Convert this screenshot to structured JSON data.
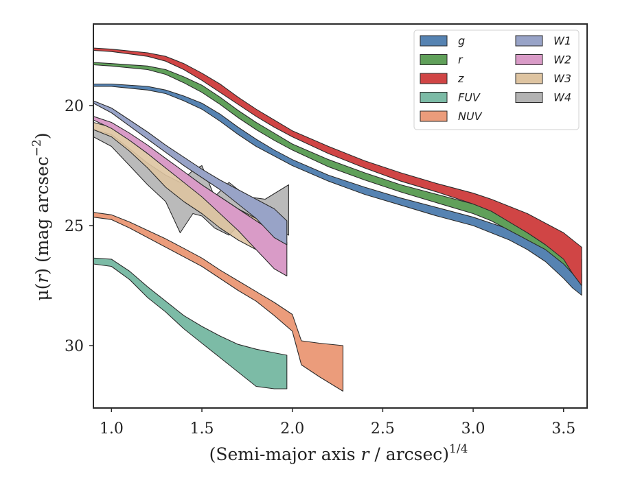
{
  "chart_data": {
    "type": "area",
    "xlabel": "(Semi-major axis r / arcsec)",
    "xlabel_parts": {
      "prefix": "(Semi-major axis ",
      "var": "r",
      "suffix": " / arcsec)",
      "exponent": "1/4"
    },
    "ylabel": "μ(r) (mag arcsec⁻²)",
    "ylabel_parts": {
      "prefix": "μ(",
      "var": "r",
      "suffix": ") (mag arcsec",
      "exponent": "−2",
      "close": ")"
    },
    "xlim": [
      0.9,
      3.63
    ],
    "ylim": [
      32.6,
      16.6
    ],
    "y_inverted": true,
    "xticks": [
      1.0,
      1.5,
      2.0,
      2.5,
      3.0,
      3.5
    ],
    "xtick_labels": [
      "1.0",
      "1.5",
      "2.0",
      "2.5",
      "3.0",
      "3.5"
    ],
    "yticks": [
      20,
      25,
      30
    ],
    "ytick_labels": [
      "20",
      "25",
      "30"
    ],
    "grid": false,
    "legend": {
      "placement": "top-right",
      "columns": 2
    },
    "series": [
      {
        "name": "g",
        "color": "#5683b2",
        "points": [
          [
            0.9,
            19.1,
            19.2
          ],
          [
            1.0,
            19.1,
            19.2
          ],
          [
            1.2,
            19.2,
            19.35
          ],
          [
            1.3,
            19.35,
            19.5
          ],
          [
            1.4,
            19.6,
            19.8
          ],
          [
            1.5,
            19.9,
            20.15
          ],
          [
            1.6,
            20.35,
            20.65
          ],
          [
            1.7,
            20.9,
            21.2
          ],
          [
            1.8,
            21.4,
            21.7
          ],
          [
            1.9,
            21.85,
            22.1
          ],
          [
            2.0,
            22.25,
            22.5
          ],
          [
            2.2,
            22.9,
            23.15
          ],
          [
            2.4,
            23.4,
            23.7
          ],
          [
            2.6,
            23.85,
            24.15
          ],
          [
            2.8,
            24.25,
            24.6
          ],
          [
            3.0,
            24.65,
            25.0
          ],
          [
            3.1,
            24.9,
            25.3
          ],
          [
            3.2,
            25.15,
            25.6
          ],
          [
            3.3,
            25.45,
            26.0
          ],
          [
            3.4,
            25.85,
            26.5
          ],
          [
            3.5,
            26.35,
            27.2
          ],
          [
            3.55,
            26.6,
            27.6
          ],
          [
            3.6,
            27.0,
            27.9
          ]
        ]
      },
      {
        "name": "r",
        "color": "#60a05a",
        "points": [
          [
            0.9,
            18.2,
            18.3
          ],
          [
            1.0,
            18.25,
            18.35
          ],
          [
            1.2,
            18.35,
            18.5
          ],
          [
            1.3,
            18.5,
            18.7
          ],
          [
            1.4,
            18.8,
            19.05
          ],
          [
            1.5,
            19.15,
            19.45
          ],
          [
            1.6,
            19.65,
            19.95
          ],
          [
            1.7,
            20.2,
            20.5
          ],
          [
            1.8,
            20.7,
            21.0
          ],
          [
            1.9,
            21.15,
            21.45
          ],
          [
            2.0,
            21.6,
            21.85
          ],
          [
            2.2,
            22.25,
            22.55
          ],
          [
            2.4,
            22.8,
            23.1
          ],
          [
            2.6,
            23.3,
            23.6
          ],
          [
            2.8,
            23.7,
            24.05
          ],
          [
            3.0,
            24.1,
            24.5
          ],
          [
            3.1,
            24.35,
            24.8
          ],
          [
            3.2,
            24.6,
            25.2
          ],
          [
            3.3,
            24.9,
            25.6
          ],
          [
            3.4,
            25.3,
            26.0
          ],
          [
            3.5,
            25.8,
            26.6
          ],
          [
            3.55,
            26.1,
            27.0
          ],
          [
            3.6,
            26.4,
            27.4
          ]
        ]
      },
      {
        "name": "z",
        "color": "#d04545",
        "points": [
          [
            0.9,
            17.6,
            17.7
          ],
          [
            1.0,
            17.65,
            17.75
          ],
          [
            1.2,
            17.8,
            17.95
          ],
          [
            1.3,
            17.95,
            18.15
          ],
          [
            1.4,
            18.25,
            18.5
          ],
          [
            1.5,
            18.65,
            18.95
          ],
          [
            1.6,
            19.1,
            19.45
          ],
          [
            1.7,
            19.65,
            19.95
          ],
          [
            1.8,
            20.15,
            20.45
          ],
          [
            1.9,
            20.6,
            20.9
          ],
          [
            2.0,
            21.05,
            21.3
          ],
          [
            2.2,
            21.7,
            22.0
          ],
          [
            2.4,
            22.3,
            22.6
          ],
          [
            2.6,
            22.8,
            23.15
          ],
          [
            2.8,
            23.25,
            23.6
          ],
          [
            3.0,
            23.65,
            24.1
          ],
          [
            3.1,
            23.9,
            24.4
          ],
          [
            3.2,
            24.2,
            24.85
          ],
          [
            3.3,
            24.5,
            25.3
          ],
          [
            3.4,
            24.9,
            25.8
          ],
          [
            3.5,
            25.3,
            26.4
          ],
          [
            3.55,
            25.6,
            27.0
          ],
          [
            3.6,
            25.9,
            27.5
          ]
        ]
      },
      {
        "name": "FUV",
        "color": "#7cbba6",
        "points": [
          [
            0.9,
            26.35,
            26.6
          ],
          [
            1.0,
            26.4,
            26.7
          ],
          [
            1.1,
            26.9,
            27.25
          ],
          [
            1.2,
            27.55,
            28.0
          ],
          [
            1.3,
            28.15,
            28.6
          ],
          [
            1.4,
            28.75,
            29.3
          ],
          [
            1.5,
            29.2,
            29.9
          ],
          [
            1.6,
            29.6,
            30.5
          ],
          [
            1.7,
            29.95,
            31.1
          ],
          [
            1.8,
            30.15,
            31.7
          ],
          [
            1.9,
            30.3,
            31.8
          ],
          [
            1.97,
            30.4,
            31.8
          ]
        ]
      },
      {
        "name": "NUV",
        "color": "#eb9c7b",
        "points": [
          [
            0.9,
            24.45,
            24.65
          ],
          [
            1.0,
            24.55,
            24.75
          ],
          [
            1.1,
            24.85,
            25.1
          ],
          [
            1.2,
            25.2,
            25.5
          ],
          [
            1.3,
            25.55,
            25.9
          ],
          [
            1.4,
            25.95,
            26.3
          ],
          [
            1.5,
            26.35,
            26.7
          ],
          [
            1.6,
            26.85,
            27.2
          ],
          [
            1.7,
            27.3,
            27.7
          ],
          [
            1.8,
            27.75,
            28.15
          ],
          [
            1.9,
            28.2,
            28.75
          ],
          [
            2.0,
            28.7,
            29.4
          ],
          [
            2.05,
            29.8,
            30.8
          ],
          [
            2.15,
            29.9,
            31.3
          ],
          [
            2.28,
            30.0,
            31.9
          ]
        ]
      },
      {
        "name": "W1",
        "color": "#98a3c7",
        "points": [
          [
            0.9,
            19.8,
            19.9
          ],
          [
            1.0,
            20.1,
            20.3
          ],
          [
            1.1,
            20.6,
            20.85
          ],
          [
            1.2,
            21.1,
            21.4
          ],
          [
            1.3,
            21.65,
            21.95
          ],
          [
            1.4,
            22.15,
            22.5
          ],
          [
            1.5,
            22.65,
            23.0
          ],
          [
            1.6,
            23.1,
            23.5
          ],
          [
            1.7,
            23.5,
            24.1
          ],
          [
            1.8,
            23.9,
            24.7
          ],
          [
            1.9,
            24.3,
            25.5
          ],
          [
            1.97,
            24.8,
            25.8
          ]
        ]
      },
      {
        "name": "W2",
        "color": "#d99bc7",
        "points": [
          [
            0.9,
            20.45,
            20.6
          ],
          [
            1.0,
            20.7,
            20.95
          ],
          [
            1.1,
            21.15,
            21.45
          ],
          [
            1.2,
            21.65,
            22.0
          ],
          [
            1.3,
            22.2,
            22.6
          ],
          [
            1.4,
            22.75,
            23.2
          ],
          [
            1.5,
            23.3,
            23.8
          ],
          [
            1.6,
            23.8,
            24.5
          ],
          [
            1.7,
            24.3,
            25.2
          ],
          [
            1.8,
            24.8,
            26.0
          ],
          [
            1.9,
            25.3,
            26.8
          ],
          [
            1.97,
            25.7,
            27.1
          ]
        ]
      },
      {
        "name": "W3",
        "color": "#dec4a1",
        "points": [
          [
            0.9,
            20.7,
            21.0
          ],
          [
            1.0,
            20.9,
            21.3
          ],
          [
            1.1,
            21.4,
            21.9
          ],
          [
            1.2,
            22.0,
            22.6
          ],
          [
            1.3,
            22.6,
            23.4
          ],
          [
            1.4,
            23.0,
            24.0
          ],
          [
            1.5,
            23.4,
            24.5
          ],
          [
            1.6,
            23.8,
            25.1
          ],
          [
            1.7,
            24.3,
            25.6
          ],
          [
            1.8,
            24.7,
            26.0
          ],
          [
            1.9,
            24.8,
            26.2
          ],
          [
            1.95,
            24.8,
            26.4
          ]
        ]
      },
      {
        "name": "W4",
        "color": "#b3b3b3",
        "points": [
          [
            0.9,
            21.0,
            21.3
          ],
          [
            1.0,
            21.2,
            21.7
          ],
          [
            1.1,
            21.8,
            22.5
          ],
          [
            1.2,
            22.4,
            23.3
          ],
          [
            1.3,
            22.9,
            24.0
          ],
          [
            1.38,
            23.2,
            25.3
          ],
          [
            1.45,
            22.7,
            24.5
          ],
          [
            1.5,
            22.5,
            24.6
          ],
          [
            1.57,
            23.8,
            25.1
          ],
          [
            1.65,
            23.2,
            25.4
          ],
          [
            1.75,
            23.8,
            24.6
          ],
          [
            1.85,
            23.9,
            24.8
          ],
          [
            1.98,
            23.3,
            25.4
          ]
        ]
      }
    ]
  }
}
